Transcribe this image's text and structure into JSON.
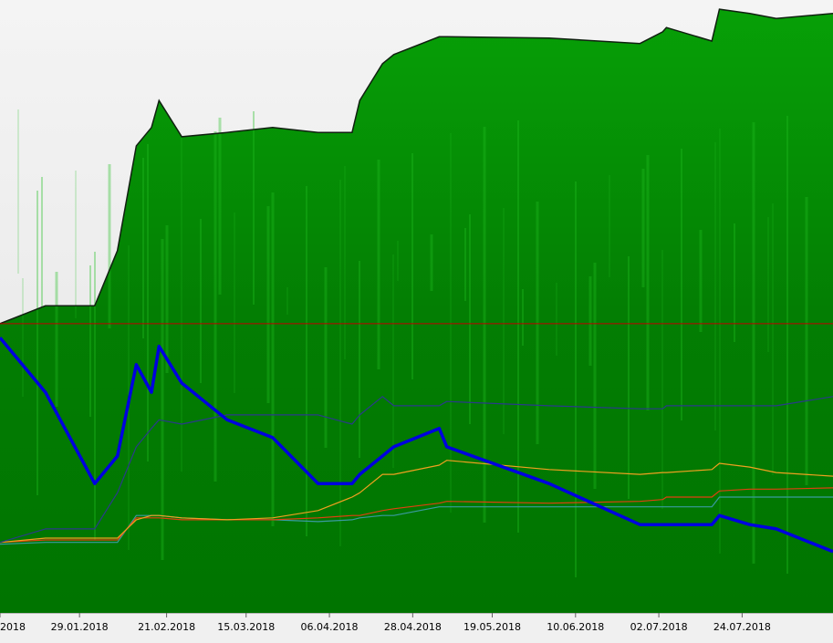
{
  "chart_data": {
    "type": "area",
    "x": [
      0,
      12,
      25,
      31,
      36,
      40,
      42,
      48,
      60,
      72,
      84,
      93,
      95,
      101,
      104,
      116,
      118,
      145,
      169,
      175,
      176,
      188,
      190,
      198,
      205,
      220
    ],
    "xlim": [
      0,
      220
    ],
    "xticks": [
      {
        "value": 0,
        "label": "2018"
      },
      {
        "value": 21,
        "label": "29.01.2018"
      },
      {
        "value": 44,
        "label": "21.02.2018"
      },
      {
        "value": 65,
        "label": "15.03.2018"
      },
      {
        "value": 87,
        "label": "06.04.2018"
      },
      {
        "value": 109,
        "label": "28.04.2018"
      },
      {
        "value": 130,
        "label": "19.05.2018"
      },
      {
        "value": 152,
        "label": "10.06.2018"
      },
      {
        "value": 174,
        "label": "02.07.2018"
      },
      {
        "value": 196,
        "label": "24.07.2018"
      }
    ],
    "ylim": [
      0,
      100
    ],
    "series": [
      {
        "color": "#009a00",
        "values": [
          47.2,
          50.1,
          50.1,
          59.1,
          76.2,
          79.2,
          83.6,
          77.7,
          78.4,
          79.2,
          78.4,
          78.4,
          83.6,
          89.6,
          91.1,
          94.0,
          94.0,
          93.8,
          92.9,
          94.8,
          95.5,
          93.3,
          98.5,
          97.8,
          97.0,
          97.8
        ]
      },
      {
        "color": "#0000e0",
        "values": [
          44.9,
          36.0,
          21.1,
          25.6,
          40.5,
          36.0,
          43.5,
          37.5,
          31.5,
          28.6,
          21.1,
          21.1,
          22.6,
          25.6,
          27.1,
          30.1,
          27.1,
          21.1,
          14.4,
          14.4,
          14.4,
          14.4,
          15.9,
          14.4,
          13.7,
          10.0
        ]
      },
      {
        "color": "#2a3a8a",
        "values": [
          11.5,
          13.7,
          13.7,
          19.6,
          27.1,
          30.1,
          31.5,
          30.8,
          32.3,
          32.3,
          32.3,
          30.8,
          32.3,
          35.3,
          33.8,
          33.8,
          34.5,
          33.8,
          33.3,
          33.3,
          33.8,
          33.8,
          33.8,
          33.8,
          33.8,
          35.3
        ]
      },
      {
        "color": "#f0a020",
        "values": [
          11.5,
          12.2,
          12.2,
          12.2,
          15.2,
          15.9,
          15.9,
          15.5,
          15.2,
          15.5,
          16.7,
          18.9,
          19.6,
          22.6,
          22.6,
          24.1,
          24.9,
          23.4,
          22.6,
          22.9,
          22.9,
          23.4,
          24.4,
          23.8,
          22.9,
          22.3
        ]
      },
      {
        "color": "#e04010",
        "values": [
          11.5,
          11.9,
          11.9,
          11.9,
          15.5,
          15.5,
          15.5,
          15.2,
          15.2,
          15.2,
          15.5,
          15.9,
          15.9,
          16.7,
          17.0,
          17.9,
          18.2,
          17.9,
          18.2,
          18.5,
          18.9,
          18.9,
          19.9,
          20.2,
          20.2,
          20.4
        ]
      },
      {
        "color": "#3a9aa0",
        "values": [
          11.2,
          11.5,
          11.5,
          11.5,
          15.9,
          15.9,
          15.9,
          15.5,
          15.2,
          15.2,
          14.9,
          15.2,
          15.5,
          15.9,
          15.9,
          17.3,
          17.3,
          17.3,
          17.3,
          17.3,
          17.3,
          17.3,
          18.9,
          18.9,
          18.9,
          18.9
        ]
      }
    ],
    "reference_line": {
      "value": 47.2,
      "color": "#c00000"
    }
  }
}
